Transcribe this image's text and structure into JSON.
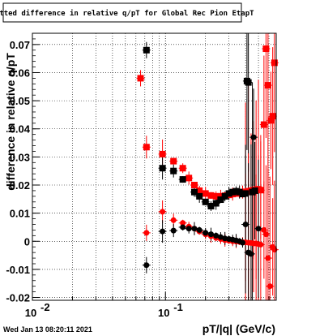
{
  "chart_data": {
    "type": "scatter",
    "title": "Fitted difference in relative q/pT for Global Rec Pion EtapT",
    "xlabel": "pT/|q| (GeV/c)",
    "ylabel": "difference in relative q/pT",
    "xscale": "log",
    "xlim": [
      0.01,
      0.68
    ],
    "ylim": [
      -0.021,
      0.074
    ],
    "x_ticks": [
      {
        "value": 0.01,
        "label": "10",
        "exp": "-2"
      },
      {
        "value": 0.1,
        "label": "10",
        "exp": "-1"
      }
    ],
    "y_ticks": [
      {
        "value": -0.02,
        "label": "-0.02"
      },
      {
        "value": -0.01,
        "label": "-0.01"
      },
      {
        "value": 0,
        "label": "0"
      },
      {
        "value": 0.01,
        "label": "0.01"
      },
      {
        "value": 0.02,
        "label": "0.02"
      },
      {
        "value": 0.03,
        "label": "0.03"
      },
      {
        "value": 0.04,
        "label": "0.04"
      },
      {
        "value": 0.05,
        "label": "0.05"
      },
      {
        "value": 0.06,
        "label": "0.06"
      },
      {
        "value": 0.07,
        "label": "0.07"
      }
    ],
    "grid": true,
    "series": [
      {
        "color": "#ff0000",
        "marker": "square",
        "points": [
          [
            0.065,
            0.058
          ],
          [
            0.072,
            0.0335
          ],
          [
            0.095,
            0.031
          ],
          [
            0.115,
            0.0285
          ],
          [
            0.135,
            0.026
          ],
          [
            0.15,
            0.0225
          ],
          [
            0.165,
            0.02
          ],
          [
            0.18,
            0.018
          ],
          [
            0.2,
            0.017
          ],
          [
            0.22,
            0.0163
          ],
          [
            0.24,
            0.016
          ],
          [
            0.26,
            0.016
          ],
          [
            0.28,
            0.0162
          ],
          [
            0.3,
            0.0165
          ],
          [
            0.32,
            0.0168
          ],
          [
            0.34,
            0.017
          ],
          [
            0.36,
            0.0172
          ],
          [
            0.38,
            0.0175
          ],
          [
            0.4,
            0.0176
          ],
          [
            0.42,
            0.0178
          ],
          [
            0.44,
            0.018
          ],
          [
            0.46,
            0.0182
          ],
          [
            0.48,
            0.0183
          ],
          [
            0.5,
            0.0185
          ],
          [
            0.52,
            0.0182
          ],
          [
            0.55,
            0.0415
          ],
          [
            0.57,
            0.0685
          ],
          [
            0.59,
            0.0555
          ],
          [
            0.62,
            0.043
          ],
          [
            0.64,
            0.0445
          ],
          [
            0.66,
            0.0635
          ]
        ]
      },
      {
        "color": "#000000",
        "marker": "square",
        "points": [
          [
            0.072,
            0.068
          ],
          [
            0.095,
            0.026
          ],
          [
            0.115,
            0.025
          ],
          [
            0.135,
            0.022
          ],
          [
            0.165,
            0.0175
          ],
          [
            0.18,
            0.016
          ],
          [
            0.2,
            0.014
          ],
          [
            0.22,
            0.0125
          ],
          [
            0.24,
            0.0135
          ],
          [
            0.26,
            0.0148
          ],
          [
            0.28,
            0.016
          ],
          [
            0.3,
            0.017
          ],
          [
            0.32,
            0.0175
          ],
          [
            0.34,
            0.0178
          ],
          [
            0.36,
            0.0175
          ],
          [
            0.38,
            0.0168
          ],
          [
            0.4,
            0.017
          ],
          [
            0.41,
            0.057
          ],
          [
            0.42,
            0.0565
          ],
          [
            0.45,
            0.0175
          ],
          [
            0.47,
            0.018
          ]
        ]
      },
      {
        "color": "#ff0000",
        "marker": "circle",
        "points": [
          [
            0.072,
            0.003
          ],
          [
            0.095,
            0.0105
          ],
          [
            0.115,
            0.0075
          ],
          [
            0.135,
            0.0065
          ],
          [
            0.15,
            0.0052
          ],
          [
            0.165,
            0.0045
          ],
          [
            0.18,
            0.0035
          ],
          [
            0.2,
            0.0025
          ],
          [
            0.22,
            0.0018
          ],
          [
            0.24,
            0.0012
          ],
          [
            0.26,
            0.0008
          ],
          [
            0.28,
            0.0004
          ],
          [
            0.3,
            0.0002
          ],
          [
            0.32,
            0.0
          ],
          [
            0.34,
            -0.0001
          ],
          [
            0.36,
            -0.0002
          ],
          [
            0.38,
            -0.0003
          ],
          [
            0.4,
            -0.0004
          ],
          [
            0.42,
            -0.0005
          ],
          [
            0.44,
            -0.0006
          ],
          [
            0.46,
            -0.0008
          ],
          [
            0.48,
            -0.0008
          ],
          [
            0.5,
            -0.001
          ],
          [
            0.52,
            -0.0012
          ],
          [
            0.55,
            0.004
          ],
          [
            0.57,
            0.0025
          ],
          [
            0.59,
            -0.006
          ],
          [
            0.61,
            -0.016
          ],
          [
            0.64,
            -0.002
          ],
          [
            0.66,
            -0.003
          ]
        ]
      },
      {
        "color": "#000000",
        "marker": "circle",
        "points": [
          [
            0.072,
            -0.0085
          ],
          [
            0.095,
            0.0035
          ],
          [
            0.115,
            0.0038
          ],
          [
            0.135,
            0.005
          ],
          [
            0.15,
            0.0045
          ],
          [
            0.165,
            0.0045
          ],
          [
            0.18,
            0.004
          ],
          [
            0.2,
            0.003
          ],
          [
            0.22,
            0.0025
          ],
          [
            0.24,
            0.002
          ],
          [
            0.26,
            0.0015
          ],
          [
            0.28,
            0.001
          ],
          [
            0.3,
            0.0008
          ],
          [
            0.32,
            0.0006
          ],
          [
            0.34,
            0.0003
          ],
          [
            0.36,
            0.0
          ],
          [
            0.38,
            -0.0005
          ],
          [
            0.4,
            0.006
          ],
          [
            0.42,
            -0.004
          ],
          [
            0.44,
            -0.0045
          ],
          [
            0.46,
            0.037
          ],
          [
            0.5,
            0.0045
          ]
        ]
      }
    ]
  },
  "timestamp": "Wed Jan 13 08:20:11 2021"
}
